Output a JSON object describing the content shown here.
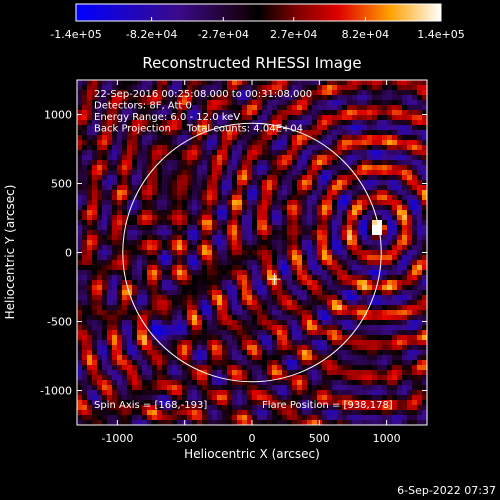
{
  "chart_data": {
    "type": "heatmap",
    "title": "Reconstructed RHESSI Image",
    "xlabel": "Heliocentric X (arcsec)",
    "ylabel": "Heliocentric Y (arcsec)",
    "xlim": [
      -1300,
      1300
    ],
    "ylim": [
      -1250,
      1250
    ],
    "x_ticks": [
      -1000,
      -500,
      0,
      500,
      1000
    ],
    "x_tick_labels": [
      "-1000",
      "-500",
      "0",
      "500",
      "1000"
    ],
    "y_ticks": [
      -1000,
      -500,
      0,
      500,
      1000
    ],
    "y_tick_labels": [
      "-1000",
      "-500",
      "0",
      "500",
      "1000"
    ],
    "colorbar": {
      "min": -140000,
      "max": 140000,
      "ticks": [
        -140000,
        -82000,
        -27000,
        27000,
        82000,
        140000
      ],
      "tick_labels": [
        "-1.4e+05",
        "-8.2e+04",
        "-2.7e+04",
        "2.7e+04",
        "8.2e+04",
        "1.4e+05"
      ]
    },
    "info_lines": [
      "22-Sep-2016 00:25:08.000 to 00:31:08.000",
      "Detectors: 8F, Att 0",
      "Energy Range: 6.0 - 12.0 keV",
      "Back Projection     Total counts: 4.04E+04"
    ],
    "spin_axis_text": "Spin Axis = [168,-193]",
    "flare_position_text": "Flare Position = [938,178]",
    "solar_limb": {
      "center": [
        0,
        0
      ],
      "radius": 960
    },
    "spin_axis": [
      168,
      -193
    ],
    "flare_position": [
      938,
      178
    ],
    "secondary_source": [
      -620,
      -560
    ]
  },
  "footer": {
    "timestamp": "6-Sep-2022 07:37"
  }
}
